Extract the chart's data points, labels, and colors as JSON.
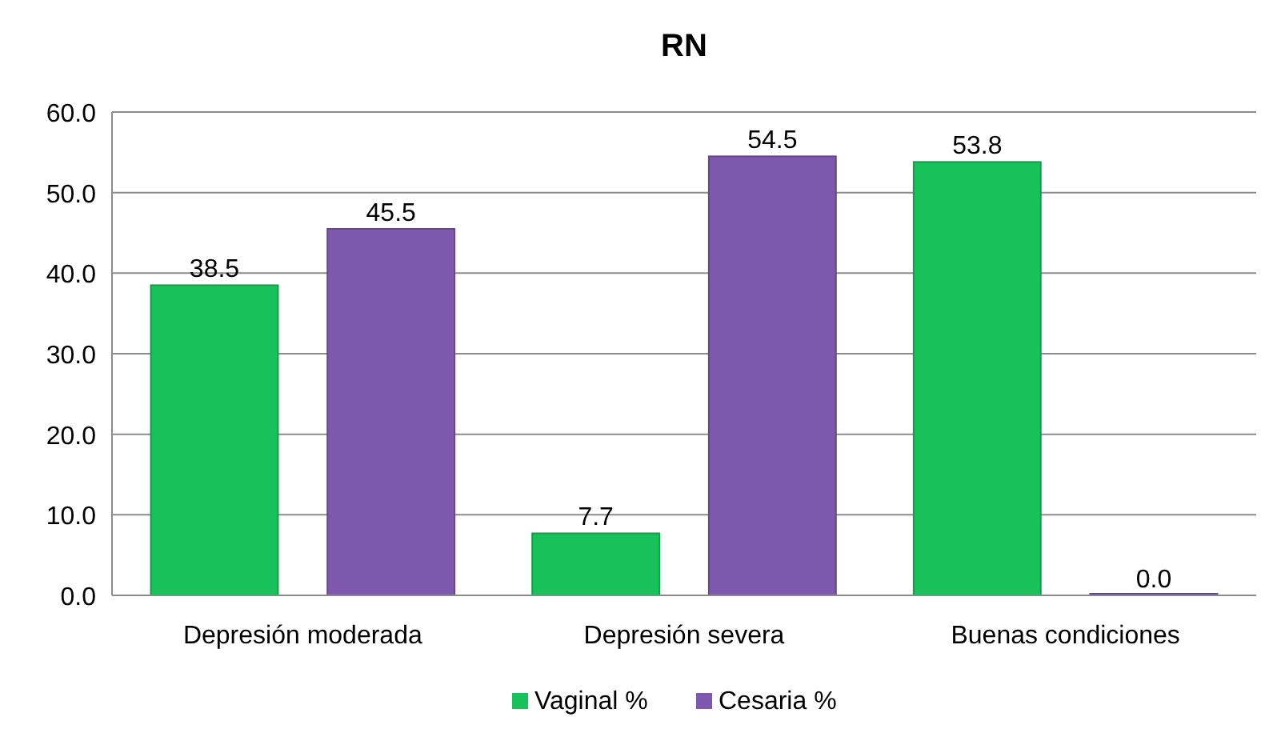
{
  "chart_data": {
    "type": "bar",
    "title": "RN",
    "categories": [
      "Depresión moderada",
      "Depresión severa",
      "Buenas condiciones"
    ],
    "series": [
      {
        "name": "Vaginal %",
        "color": "#17c25a",
        "values": [
          38.5,
          7.7,
          53.8
        ],
        "value_labels": [
          "38.5",
          "7.7",
          "53.8"
        ]
      },
      {
        "name": "Cesaria %",
        "color": "#7e58ad",
        "values": [
          45.5,
          54.5,
          0
        ],
        "value_labels": [
          "45.5",
          "54.5",
          "0.0"
        ]
      }
    ],
    "ylim": [
      0,
      60
    ],
    "yticks": [
      {
        "value": 0,
        "label": "0.0"
      },
      {
        "value": 10,
        "label": "10.0"
      },
      {
        "value": 20,
        "label": "20.0"
      },
      {
        "value": 30,
        "label": "30.0"
      },
      {
        "value": 40,
        "label": "40.0"
      },
      {
        "value": 50,
        "label": "50.0"
      },
      {
        "value": 60,
        "label": "60.0"
      }
    ],
    "grid": "y",
    "legend": "bottom"
  }
}
